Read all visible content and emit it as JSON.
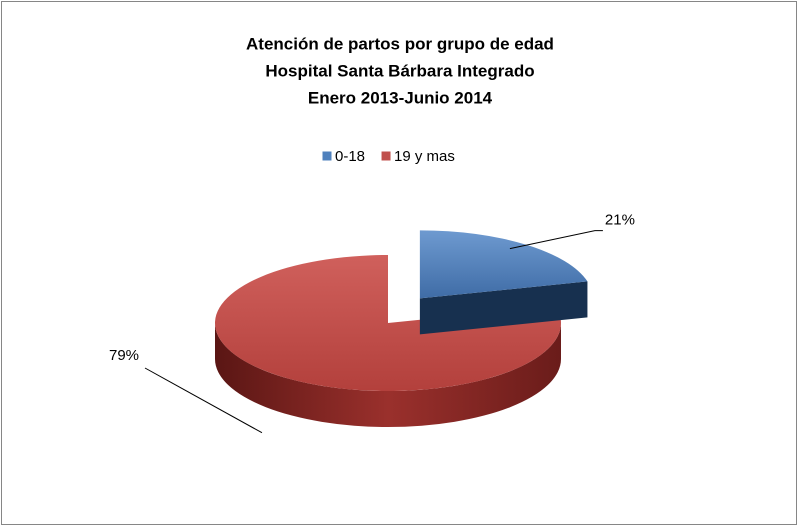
{
  "chart_data": {
    "type": "pie",
    "title": [
      "Atención de partos por grupo de edad",
      "Hospital Santa Bárbara Integrado",
      "Enero 2013-Junio 2014"
    ],
    "categories": [
      "0-18",
      "19 y mas"
    ],
    "values": [
      21,
      79
    ],
    "value_labels": [
      "21%",
      "79%"
    ],
    "colors": [
      "#4f81bd",
      "#c0504d"
    ],
    "legend": "top"
  }
}
